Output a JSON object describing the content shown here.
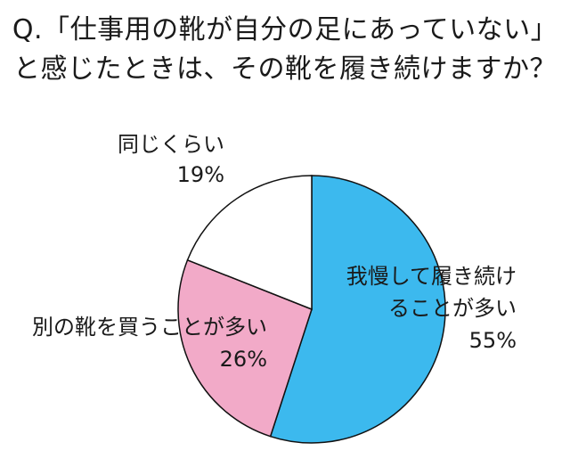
{
  "chart_data": {
    "type": "pie",
    "title": [
      "Q.「仕事用の靴が自分の足にあっていない」",
      "と感じたときは、その靴を履き続けますか？"
    ],
    "slices": [
      {
        "label": [
          "我慢して履き続け",
          "ることが多い"
        ],
        "value": 55,
        "value_label": "55%",
        "color": "#3cb9ee"
      },
      {
        "label": [
          "別の靴を買うことが多い"
        ],
        "value": 26,
        "value_label": "26%",
        "color": "#f2aac8"
      },
      {
        "label": [
          "同じくらい"
        ],
        "value": 19,
        "value_label": "19%",
        "color": "#ffffff"
      }
    ],
    "start": "12 o'clock",
    "direction": "clockwise",
    "legend": "none"
  }
}
